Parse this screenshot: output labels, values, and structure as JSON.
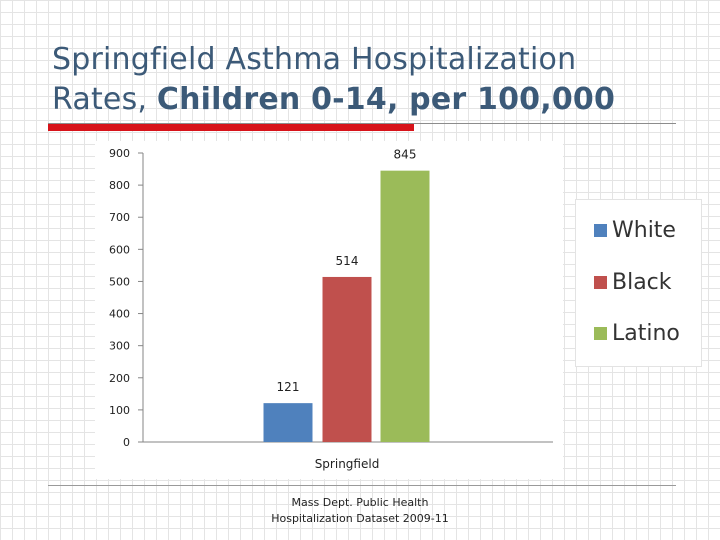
{
  "slide": {
    "title_line1": "Springfield Asthma Hospitalization",
    "title_line2_regular": "Rates, ",
    "title_line2_bold": "Children 0-14, per 100,000",
    "source_line1": "Mass Dept. Public Health",
    "source_line2": "Hospitalization Dataset 2009-11"
  },
  "chart_data": {
    "type": "bar",
    "title": "",
    "categories": [
      "Springfield"
    ],
    "series": [
      {
        "name": "White",
        "values": [
          121
        ],
        "color": "#4f81bd"
      },
      {
        "name": "Black",
        "values": [
          514
        ],
        "color": "#c0504d"
      },
      {
        "name": "Latino",
        "values": [
          845
        ],
        "color": "#9bbb59"
      }
    ],
    "xlabel": "",
    "ylabel": "",
    "ylim": [
      0,
      900
    ],
    "yticks": [
      "0",
      "100",
      "200",
      "300",
      "400",
      "500",
      "600",
      "700",
      "800",
      "900"
    ],
    "data_labels": [
      "121",
      "514",
      "845"
    ],
    "grid": false,
    "legend_position": "right"
  }
}
